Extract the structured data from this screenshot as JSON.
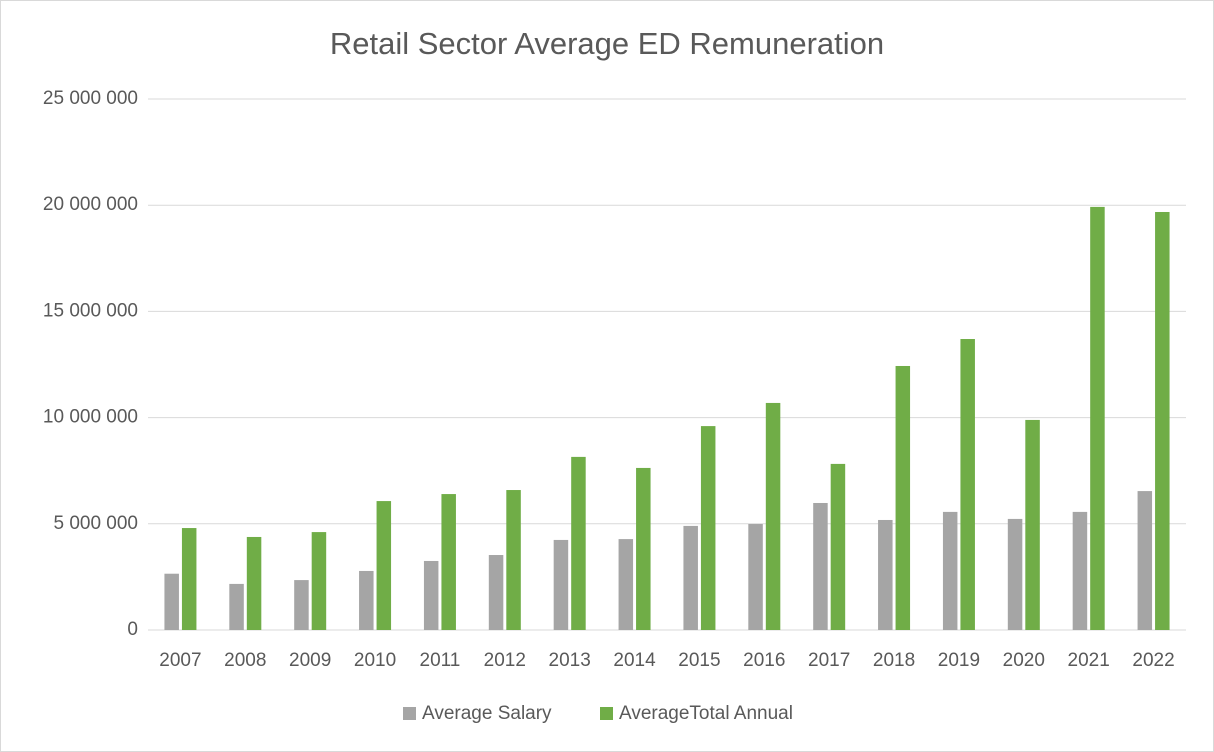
{
  "chart_data": {
    "type": "bar",
    "title": "Retail Sector Average ED Remuneration",
    "categories": [
      "2007",
      "2008",
      "2009",
      "2010",
      "2011",
      "2012",
      "2013",
      "2014",
      "2015",
      "2016",
      "2017",
      "2018",
      "2019",
      "2020",
      "2021",
      "2022"
    ],
    "series": [
      {
        "name": "Average Salary",
        "color": "#a5a5a5",
        "values": [
          2650000,
          2170000,
          2350000,
          2780000,
          3250000,
          3530000,
          4240000,
          4280000,
          4900000,
          4990000,
          5980000,
          5180000,
          5560000,
          5230000,
          5560000,
          6540000
        ]
      },
      {
        "name": "AverageTotal Annual",
        "color": "#70ad47",
        "values": [
          4800000,
          4380000,
          4610000,
          6070000,
          6400000,
          6590000,
          8150000,
          7630000,
          9600000,
          10690000,
          7820000,
          12430000,
          13700000,
          9890000,
          19920000,
          19680000
        ]
      }
    ],
    "ylim": [
      0,
      25000000
    ],
    "yticks": [
      0,
      {
        "value": 5000000,
        "label": "5 000 000"
      },
      {
        "value": 10000000,
        "label": "10 000 000"
      },
      {
        "value": 15000000,
        "label": "15 000 000"
      },
      {
        "value": 20000000,
        "label": "20 000 000"
      },
      {
        "value": 25000000,
        "label": "25 000 000"
      }
    ],
    "grid": true,
    "legend": "bottom"
  }
}
